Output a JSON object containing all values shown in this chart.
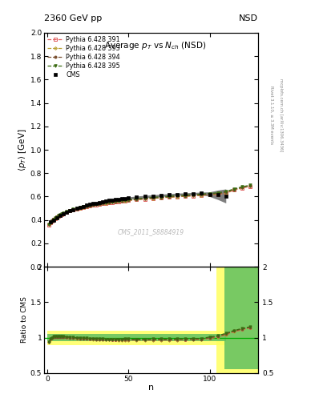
{
  "header_left": "2360 GeV pp",
  "header_right": "NSD",
  "title_main": "Average $p_T$ vs $N_{ch}$ (NSD)",
  "ylabel_main": "$\\langle p_T \\rangle$ [GeV]",
  "ylabel_ratio": "Ratio to CMS",
  "xlabel": "n",
  "watermark": "CMS_2011_S8884919",
  "right_label_top": "Rivet 3.1.10, ≥ 3.3M events",
  "right_label_bottom": "mcplots.cern.ch [arXiv:1306.3436]",
  "ylim_main": [
    0.0,
    2.0
  ],
  "ylim_ratio": [
    0.5,
    2.0
  ],
  "xlim": [
    -2,
    130
  ],
  "cms_n": [
    2,
    4,
    6,
    8,
    10,
    12,
    14,
    16,
    18,
    20,
    22,
    24,
    26,
    28,
    30,
    32,
    34,
    36,
    38,
    40,
    42,
    44,
    46,
    48,
    50,
    55,
    60,
    65,
    70,
    75,
    80,
    85,
    90,
    95,
    100,
    105,
    110
  ],
  "cms_pt": [
    0.385,
    0.4,
    0.42,
    0.438,
    0.453,
    0.467,
    0.479,
    0.49,
    0.5,
    0.509,
    0.517,
    0.525,
    0.532,
    0.539,
    0.545,
    0.551,
    0.557,
    0.562,
    0.566,
    0.57,
    0.574,
    0.578,
    0.581,
    0.584,
    0.587,
    0.594,
    0.6,
    0.605,
    0.61,
    0.615,
    0.619,
    0.622,
    0.625,
    0.628,
    0.62,
    0.615,
    0.605
  ],
  "cms_err_lo": [
    0.025,
    0.02,
    0.016,
    0.013,
    0.012,
    0.011,
    0.01,
    0.01,
    0.01,
    0.01,
    0.01,
    0.01,
    0.01,
    0.01,
    0.01,
    0.01,
    0.01,
    0.01,
    0.01,
    0.01,
    0.01,
    0.01,
    0.01,
    0.01,
    0.01,
    0.01,
    0.01,
    0.01,
    0.01,
    0.01,
    0.01,
    0.01,
    0.01,
    0.01,
    0.02,
    0.04,
    0.06
  ],
  "cms_err_hi": [
    0.025,
    0.02,
    0.016,
    0.013,
    0.012,
    0.011,
    0.01,
    0.01,
    0.01,
    0.01,
    0.01,
    0.01,
    0.01,
    0.01,
    0.01,
    0.01,
    0.01,
    0.01,
    0.01,
    0.01,
    0.01,
    0.01,
    0.01,
    0.01,
    0.01,
    0.01,
    0.01,
    0.01,
    0.01,
    0.01,
    0.01,
    0.01,
    0.01,
    0.01,
    0.02,
    0.04,
    0.06
  ],
  "pythia_n": [
    1,
    2,
    3,
    4,
    5,
    6,
    7,
    8,
    9,
    10,
    12,
    14,
    16,
    18,
    20,
    22,
    24,
    26,
    28,
    30,
    32,
    34,
    36,
    38,
    40,
    42,
    44,
    46,
    48,
    50,
    55,
    60,
    65,
    70,
    75,
    80,
    85,
    90,
    95,
    100,
    105,
    110,
    115,
    120,
    125
  ],
  "p391_pt": [
    0.36,
    0.375,
    0.389,
    0.402,
    0.413,
    0.423,
    0.432,
    0.44,
    0.448,
    0.455,
    0.467,
    0.477,
    0.486,
    0.494,
    0.502,
    0.508,
    0.515,
    0.52,
    0.526,
    0.531,
    0.535,
    0.54,
    0.544,
    0.548,
    0.551,
    0.555,
    0.558,
    0.561,
    0.564,
    0.567,
    0.573,
    0.579,
    0.584,
    0.589,
    0.594,
    0.598,
    0.602,
    0.606,
    0.61,
    0.614,
    0.618,
    0.628,
    0.655,
    0.672,
    0.688
  ],
  "p393_pt": [
    0.361,
    0.376,
    0.39,
    0.403,
    0.414,
    0.424,
    0.433,
    0.441,
    0.449,
    0.456,
    0.468,
    0.478,
    0.487,
    0.495,
    0.503,
    0.51,
    0.516,
    0.522,
    0.527,
    0.532,
    0.537,
    0.541,
    0.545,
    0.549,
    0.552,
    0.556,
    0.559,
    0.562,
    0.565,
    0.568,
    0.574,
    0.58,
    0.585,
    0.59,
    0.595,
    0.599,
    0.603,
    0.607,
    0.611,
    0.616,
    0.621,
    0.631,
    0.658,
    0.676,
    0.692
  ],
  "p394_pt": [
    0.362,
    0.377,
    0.391,
    0.404,
    0.415,
    0.425,
    0.434,
    0.442,
    0.45,
    0.457,
    0.469,
    0.479,
    0.488,
    0.496,
    0.504,
    0.511,
    0.517,
    0.523,
    0.528,
    0.533,
    0.538,
    0.542,
    0.546,
    0.55,
    0.554,
    0.557,
    0.561,
    0.564,
    0.567,
    0.57,
    0.576,
    0.582,
    0.587,
    0.592,
    0.597,
    0.601,
    0.606,
    0.61,
    0.614,
    0.619,
    0.625,
    0.635,
    0.661,
    0.678,
    0.694
  ],
  "p395_pt": [
    0.363,
    0.379,
    0.393,
    0.406,
    0.417,
    0.427,
    0.437,
    0.445,
    0.453,
    0.46,
    0.472,
    0.482,
    0.491,
    0.499,
    0.507,
    0.514,
    0.52,
    0.526,
    0.532,
    0.537,
    0.542,
    0.546,
    0.55,
    0.554,
    0.558,
    0.562,
    0.565,
    0.568,
    0.572,
    0.575,
    0.581,
    0.587,
    0.593,
    0.598,
    0.603,
    0.608,
    0.612,
    0.617,
    0.621,
    0.626,
    0.632,
    0.642,
    0.666,
    0.683,
    0.698
  ],
  "color_391": "#e06060",
  "color_393": "#b8a030",
  "color_394": "#7a5030",
  "color_395": "#3a6a10",
  "color_cms_band": "#404040"
}
